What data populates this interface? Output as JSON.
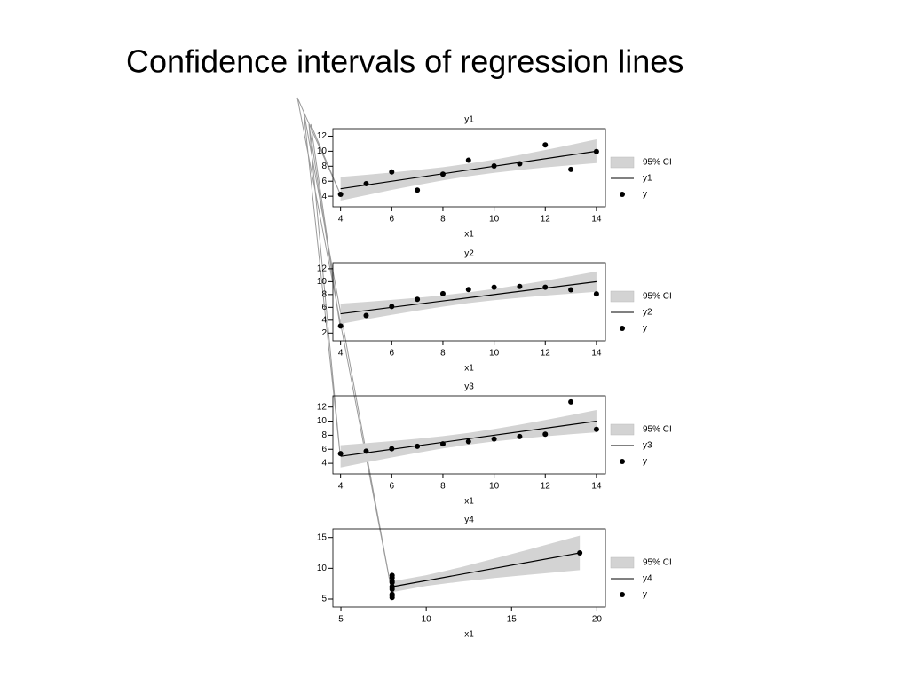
{
  "title": "Confidence intervals of regression lines",
  "chart_data": [
    {
      "type": "scatter",
      "title": "y1",
      "xlabel": "x1",
      "series": [
        {
          "name": "95% CI",
          "kind": "area",
          "color": "#d3d3d3",
          "x": [
            4,
            5,
            6,
            7,
            8,
            9,
            10,
            11,
            12,
            13,
            14
          ],
          "lower": [
            3.42,
            4.14,
            4.84,
            5.5,
            6.12,
            6.66,
            7.12,
            7.5,
            7.84,
            8.14,
            8.42
          ],
          "upper": [
            6.58,
            6.86,
            7.16,
            7.5,
            7.88,
            8.34,
            8.88,
            9.5,
            10.16,
            10.86,
            11.58
          ]
        },
        {
          "name": "y1",
          "kind": "line",
          "color": "#000000",
          "x": [
            4,
            14
          ],
          "values": [
            5,
            10
          ]
        },
        {
          "name": "y",
          "kind": "scatter",
          "color": "#000000",
          "x": [
            10,
            8,
            13,
            9,
            11,
            14,
            6,
            4,
            12,
            7,
            5
          ],
          "values": [
            8.04,
            6.95,
            7.58,
            8.81,
            8.33,
            9.96,
            7.24,
            4.26,
            10.84,
            4.82,
            5.68
          ]
        }
      ],
      "xlim": [
        3.7,
        14.35
      ],
      "ylim": [
        2.6,
        13
      ],
      "xticks": [
        4,
        6,
        8,
        10,
        12,
        14
      ],
      "yticks": [
        4,
        6,
        8,
        10,
        12
      ]
    },
    {
      "type": "scatter",
      "title": "y2",
      "xlabel": "x1",
      "series": [
        {
          "name": "95% CI",
          "kind": "area",
          "color": "#d3d3d3",
          "x": [
            4,
            5,
            6,
            7,
            8,
            9,
            10,
            11,
            12,
            13,
            14
          ],
          "lower": [
            3.42,
            4.14,
            4.84,
            5.5,
            6.12,
            6.66,
            7.12,
            7.5,
            7.84,
            8.14,
            8.42
          ],
          "upper": [
            6.58,
            6.86,
            7.16,
            7.5,
            7.88,
            8.34,
            8.88,
            9.5,
            10.16,
            10.86,
            11.58
          ]
        },
        {
          "name": "y2",
          "kind": "line",
          "color": "#000000",
          "x": [
            4,
            14
          ],
          "values": [
            5,
            10
          ]
        },
        {
          "name": "y",
          "kind": "scatter",
          "color": "#000000",
          "x": [
            10,
            8,
            13,
            9,
            11,
            14,
            6,
            4,
            12,
            7,
            5
          ],
          "values": [
            9.14,
            8.14,
            8.74,
            8.77,
            9.26,
            8.1,
            6.13,
            3.1,
            9.13,
            7.26,
            4.74
          ]
        }
      ],
      "xlim": [
        3.7,
        14.35
      ],
      "ylim": [
        0.8,
        12.95
      ],
      "xticks": [
        4,
        6,
        8,
        10,
        12,
        14
      ],
      "yticks": [
        2,
        4,
        6,
        8,
        10,
        12
      ]
    },
    {
      "type": "scatter",
      "title": "y3",
      "xlabel": "x1",
      "series": [
        {
          "name": "95% CI",
          "kind": "area",
          "color": "#d3d3d3",
          "x": [
            4,
            5,
            6,
            7,
            8,
            9,
            10,
            11,
            12,
            13,
            14
          ],
          "lower": [
            3.42,
            4.14,
            4.84,
            5.5,
            6.12,
            6.66,
            7.12,
            7.5,
            7.84,
            8.14,
            8.42
          ],
          "upper": [
            6.58,
            6.86,
            7.16,
            7.5,
            7.88,
            8.34,
            8.88,
            9.5,
            10.16,
            10.86,
            11.58
          ]
        },
        {
          "name": "y3",
          "kind": "line",
          "color": "#000000",
          "x": [
            4,
            14
          ],
          "values": [
            5,
            10
          ]
        },
        {
          "name": "y",
          "kind": "scatter",
          "color": "#000000",
          "x": [
            10,
            8,
            13,
            9,
            11,
            14,
            6,
            4,
            12,
            7,
            5
          ],
          "values": [
            7.46,
            6.77,
            12.74,
            7.11,
            7.81,
            8.84,
            6.08,
            5.39,
            8.15,
            6.42,
            5.73
          ]
        }
      ],
      "xlim": [
        3.7,
        14.35
      ],
      "ylim": [
        2.5,
        13.6
      ],
      "xticks": [
        4,
        6,
        8,
        10,
        12,
        14
      ],
      "yticks": [
        4,
        6,
        8,
        10,
        12
      ]
    },
    {
      "type": "scatter",
      "title": "y4",
      "xlabel": "x1",
      "series": [
        {
          "name": "95% CI",
          "kind": "area",
          "color": "#d3d3d3",
          "x": [
            8,
            10,
            12,
            14,
            16,
            19
          ],
          "lower": [
            6.12,
            7.12,
            7.84,
            8.42,
            8.95,
            9.7
          ],
          "upper": [
            7.88,
            8.88,
            10.16,
            11.58,
            13.05,
            15.3
          ]
        },
        {
          "name": "y4",
          "kind": "line",
          "color": "#000000",
          "x": [
            8,
            19
          ],
          "values": [
            7,
            12.5
          ]
        },
        {
          "name": "y",
          "kind": "scatter",
          "color": "#000000",
          "x": [
            8,
            8,
            8,
            8,
            8,
            8,
            8,
            19,
            8,
            8,
            8
          ],
          "values": [
            6.58,
            5.76,
            7.71,
            8.84,
            8.47,
            7.04,
            5.25,
            12.5,
            5.56,
            7.91,
            6.89
          ]
        }
      ],
      "xlim": [
        4.53,
        20.5
      ],
      "ylim": [
        3.7,
        16.4
      ],
      "xticks": [
        5,
        10,
        15,
        20
      ],
      "yticks": [
        5,
        10,
        15
      ]
    }
  ]
}
